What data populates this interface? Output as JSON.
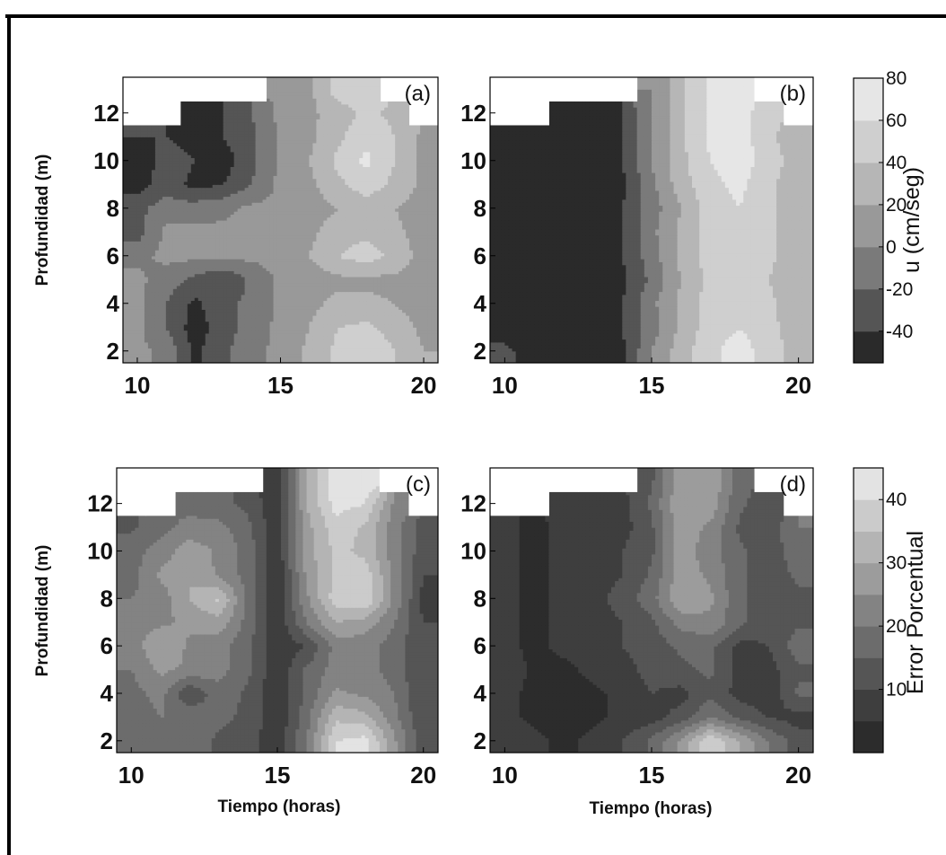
{
  "chart_data": [
    {
      "panel": "(a)",
      "type": "heatmap",
      "x_ticks": [
        "10",
        "15",
        "20"
      ],
      "y_ticks": [
        "2",
        "4",
        "6",
        "8",
        "10",
        "12"
      ],
      "xlim": [
        9.5,
        20.5
      ],
      "ylim": [
        1.5,
        13.5
      ],
      "ylabel": "Profundidad (m)",
      "xlabel": "",
      "colorbar": "u",
      "note": "",
      "x": [
        10,
        11,
        12,
        13,
        14,
        15,
        16,
        17,
        18,
        19,
        20
      ],
      "y": [
        2,
        3,
        4,
        5,
        6,
        7,
        8,
        9,
        10,
        11,
        12,
        13
      ],
      "z": [
        [
          5,
          -5,
          -45,
          -25,
          -5,
          5,
          25,
          45,
          60,
          40,
          20
        ],
        [
          5,
          -20,
          -50,
          -30,
          -10,
          5,
          20,
          40,
          45,
          30,
          15
        ],
        [
          5,
          -20,
          -45,
          -25,
          -15,
          5,
          15,
          25,
          25,
          20,
          10
        ],
        [
          5,
          -10,
          -25,
          -40,
          -15,
          5,
          10,
          15,
          15,
          15,
          10
        ],
        [
          -5,
          5,
          5,
          5,
          5,
          5,
          20,
          40,
          50,
          35,
          10
        ],
        [
          -30,
          5,
          5,
          5,
          5,
          5,
          15,
          30,
          35,
          25,
          10
        ],
        [
          -25,
          -10,
          -10,
          -5,
          5,
          5,
          10,
          20,
          30,
          20,
          10
        ],
        [
          -50,
          -30,
          -45,
          -40,
          -20,
          5,
          15,
          35,
          50,
          35,
          15
        ],
        [
          -55,
          -30,
          -40,
          -50,
          -25,
          5,
          20,
          45,
          65,
          40,
          15
        ],
        [
          -40,
          -40,
          -50,
          -40,
          -25,
          5,
          15,
          35,
          55,
          40,
          15
        ],
        [
          null,
          null,
          -50,
          -40,
          -20,
          5,
          15,
          30,
          45,
          35,
          null
        ],
        [
          null,
          null,
          null,
          null,
          null,
          5,
          15,
          50,
          55,
          null,
          null
        ]
      ]
    },
    {
      "panel": "(b)",
      "type": "heatmap",
      "x_ticks": [
        "10",
        "15",
        "20"
      ],
      "y_ticks": [
        "2",
        "4",
        "6",
        "8",
        "10",
        "12"
      ],
      "xlim": [
        9.5,
        20.5
      ],
      "ylim": [
        1.5,
        13.5
      ],
      "ylabel": "",
      "xlabel": "",
      "colorbar": "u",
      "note": "",
      "x": [
        10,
        11,
        12,
        13,
        14,
        15,
        16,
        17,
        18,
        19,
        20
      ],
      "y": [
        2,
        3,
        4,
        5,
        6,
        7,
        8,
        9,
        10,
        11,
        12,
        13
      ],
      "z": [
        [
          -30,
          -60,
          -60,
          -60,
          -45,
          0,
          30,
          55,
          70,
          50,
          30
        ],
        [
          -60,
          -60,
          -60,
          -60,
          -40,
          -10,
          25,
          50,
          60,
          45,
          30
        ],
        [
          -60,
          -60,
          -60,
          -60,
          -40,
          -5,
          25,
          50,
          55,
          45,
          25
        ],
        [
          -60,
          -60,
          -60,
          -60,
          -45,
          -15,
          20,
          45,
          55,
          40,
          25
        ],
        [
          -60,
          -60,
          -60,
          -60,
          -40,
          -10,
          25,
          50,
          55,
          45,
          25
        ],
        [
          -60,
          -60,
          -60,
          -60,
          -40,
          -5,
          25,
          50,
          55,
          45,
          25
        ],
        [
          -60,
          -60,
          -60,
          -60,
          -40,
          -10,
          20,
          50,
          60,
          45,
          25
        ],
        [
          -60,
          -60,
          -60,
          -60,
          -45,
          -5,
          30,
          55,
          65,
          45,
          25
        ],
        [
          -60,
          -60,
          -60,
          -60,
          -40,
          0,
          35,
          60,
          70,
          50,
          30
        ],
        [
          -60,
          -60,
          -60,
          -60,
          -40,
          0,
          35,
          65,
          70,
          45,
          25
        ],
        [
          null,
          null,
          -60,
          -60,
          -40,
          0,
          35,
          65,
          70,
          45,
          null
        ],
        [
          null,
          null,
          null,
          null,
          null,
          0,
          35,
          65,
          70,
          null,
          null
        ]
      ]
    },
    {
      "panel": "(c)",
      "type": "heatmap",
      "x_ticks": [
        "10",
        "15",
        "20"
      ],
      "y_ticks": [
        "2",
        "4",
        "6",
        "8",
        "10",
        "12"
      ],
      "xlim": [
        9.5,
        20.5
      ],
      "ylim": [
        1.5,
        13.5
      ],
      "ylabel": "Profundidad (m)",
      "xlabel": "Tiempo (horas)",
      "colorbar": "e",
      "note": "",
      "x": [
        10,
        11,
        12,
        13,
        14,
        15,
        16,
        17,
        18,
        19,
        20
      ],
      "y": [
        2,
        3,
        4,
        5,
        6,
        7,
        8,
        9,
        10,
        11,
        12,
        13
      ],
      "z": [
        [
          16,
          18,
          18,
          14,
          12,
          6,
          20,
          40,
          42,
          26,
          12
        ],
        [
          16,
          20,
          20,
          16,
          14,
          6,
          18,
          34,
          32,
          22,
          10
        ],
        [
          18,
          22,
          10,
          18,
          14,
          6,
          16,
          26,
          24,
          20,
          10
        ],
        [
          20,
          26,
          24,
          22,
          16,
          6,
          16,
          22,
          22,
          18,
          10
        ],
        [
          22,
          30,
          24,
          22,
          16,
          6,
          10,
          22,
          22,
          18,
          10
        ],
        [
          22,
          24,
          26,
          28,
          18,
          6,
          20,
          30,
          28,
          20,
          10
        ],
        [
          20,
          22,
          30,
          36,
          18,
          6,
          24,
          38,
          40,
          24,
          8
        ],
        [
          18,
          26,
          30,
          24,
          18,
          6,
          26,
          36,
          38,
          24,
          10
        ],
        [
          18,
          22,
          28,
          24,
          18,
          6,
          28,
          36,
          34,
          22,
          12
        ],
        [
          14,
          18,
          22,
          22,
          16,
          6,
          28,
          38,
          34,
          22,
          12
        ],
        [
          null,
          null,
          18,
          16,
          14,
          6,
          30,
          42,
          40,
          24,
          null
        ],
        [
          null,
          null,
          null,
          null,
          null,
          6,
          30,
          44,
          44,
          null,
          null
        ]
      ]
    },
    {
      "panel": "(d)",
      "type": "heatmap",
      "x_ticks": [
        "10",
        "15",
        "20"
      ],
      "y_ticks": [
        "2",
        "4",
        "6",
        "8",
        "10",
        "12"
      ],
      "xlim": [
        9.5,
        20.5
      ],
      "ylim": [
        1.5,
        13.5
      ],
      "ylabel": "",
      "xlabel": "Tiempo (horas)",
      "colorbar": "e",
      "note": "",
      "x": [
        10,
        11,
        12,
        13,
        14,
        15,
        16,
        17,
        18,
        19,
        20
      ],
      "y": [
        2,
        3,
        4,
        5,
        6,
        7,
        8,
        9,
        10,
        11,
        12,
        13
      ],
      "z": [
        [
          8,
          6,
          4,
          6,
          10,
          16,
          26,
          40,
          30,
          20,
          12
        ],
        [
          6,
          4,
          4,
          4,
          6,
          8,
          12,
          20,
          14,
          10,
          8
        ],
        [
          6,
          4,
          4,
          4,
          6,
          10,
          8,
          14,
          8,
          6,
          16
        ],
        [
          8,
          4,
          4,
          6,
          8,
          12,
          14,
          16,
          8,
          8,
          14
        ],
        [
          6,
          4,
          6,
          6,
          10,
          12,
          16,
          16,
          8,
          10,
          18
        ],
        [
          6,
          4,
          6,
          8,
          10,
          14,
          22,
          24,
          16,
          12,
          14
        ],
        [
          6,
          4,
          6,
          8,
          12,
          18,
          30,
          26,
          16,
          12,
          14
        ],
        [
          6,
          4,
          6,
          8,
          10,
          16,
          28,
          24,
          16,
          12,
          16
        ],
        [
          6,
          4,
          6,
          8,
          10,
          14,
          28,
          22,
          16,
          12,
          18
        ],
        [
          6,
          4,
          6,
          6,
          8,
          14,
          28,
          24,
          14,
          12,
          20
        ],
        [
          null,
          null,
          6,
          6,
          8,
          16,
          30,
          28,
          16,
          12,
          null
        ],
        [
          null,
          null,
          null,
          null,
          null,
          14,
          28,
          30,
          16,
          null,
          null
        ]
      ]
    }
  ],
  "colorbars": {
    "u": {
      "label": "u (cm/seg)",
      "range": [
        -55,
        80
      ],
      "ticks": [
        "-40",
        "-20",
        "0",
        "20",
        "40",
        "60",
        "80"
      ],
      "tick_values": [
        -40,
        -20,
        0,
        20,
        40,
        60,
        80
      ],
      "levels": [
        -55,
        -40,
        -20,
        0,
        20,
        40,
        60,
        80
      ],
      "colors": [
        "#2a2a2a",
        "#555555",
        "#7a7a7a",
        "#999999",
        "#b6b6b6",
        "#cfcfcf",
        "#e6e6e6"
      ]
    },
    "e": {
      "label": "Error Porcentual",
      "range": [
        0,
        45
      ],
      "ticks": [
        "10",
        "20",
        "30",
        "40"
      ],
      "tick_values": [
        10,
        20,
        30,
        40
      ],
      "levels": [
        0,
        5,
        10,
        15,
        20,
        25,
        30,
        35,
        40,
        45
      ],
      "colors": [
        "#2c2c2c",
        "#3e3e3e",
        "#555555",
        "#6c6c6c",
        "#838383",
        "#9c9c9c",
        "#b4b4b4",
        "#cbcbcb",
        "#e3e3e3"
      ]
    }
  }
}
